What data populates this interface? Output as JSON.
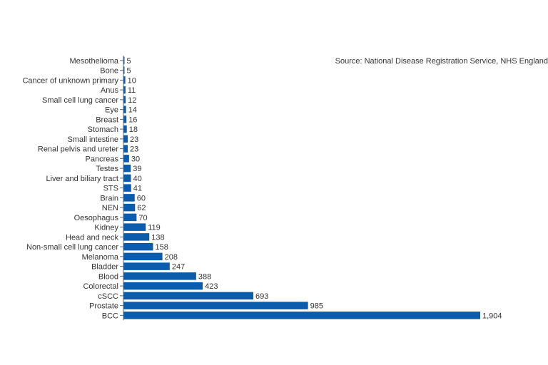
{
  "source": "Source: National Disease Registration Service, NHS England",
  "colors": {
    "bar": "#0b5cad",
    "axis": "#666666",
    "text": "#333333"
  },
  "chart_data": {
    "type": "bar",
    "orientation": "horizontal",
    "categories": [
      "Mesothelioma",
      "Bone",
      "Cancer of unknown primary",
      "Anus",
      "Small cell lung cancer",
      "Eye",
      "Breast",
      "Stomach",
      "Small intestine",
      "Renal pelvis and ureter",
      "Pancreas",
      "Testes",
      "Liver and biliary tract",
      "STS",
      "Brain",
      "NEN",
      "Oesophagus",
      "Kidney",
      "Head and neck",
      "Non-small cell lung cancer",
      "Melanoma",
      "Bladder",
      "Blood",
      "Colorectal",
      "cSCC",
      "Prostate",
      "BCC"
    ],
    "values": [
      5,
      5,
      10,
      11,
      12,
      14,
      16,
      18,
      23,
      23,
      30,
      39,
      40,
      41,
      60,
      62,
      70,
      119,
      138,
      158,
      208,
      247,
      388,
      423,
      693,
      985,
      1904
    ],
    "value_labels": [
      "5",
      "5",
      "10",
      "11",
      "12",
      "14",
      "16",
      "18",
      "23",
      "23",
      "30",
      "39",
      "40",
      "41",
      "60",
      "62",
      "70",
      "119",
      "138",
      "158",
      "208",
      "247",
      "388",
      "423",
      "693",
      "985",
      "1,904"
    ],
    "xlim": [
      0,
      1904
    ],
    "grid": false,
    "legend": "none"
  }
}
